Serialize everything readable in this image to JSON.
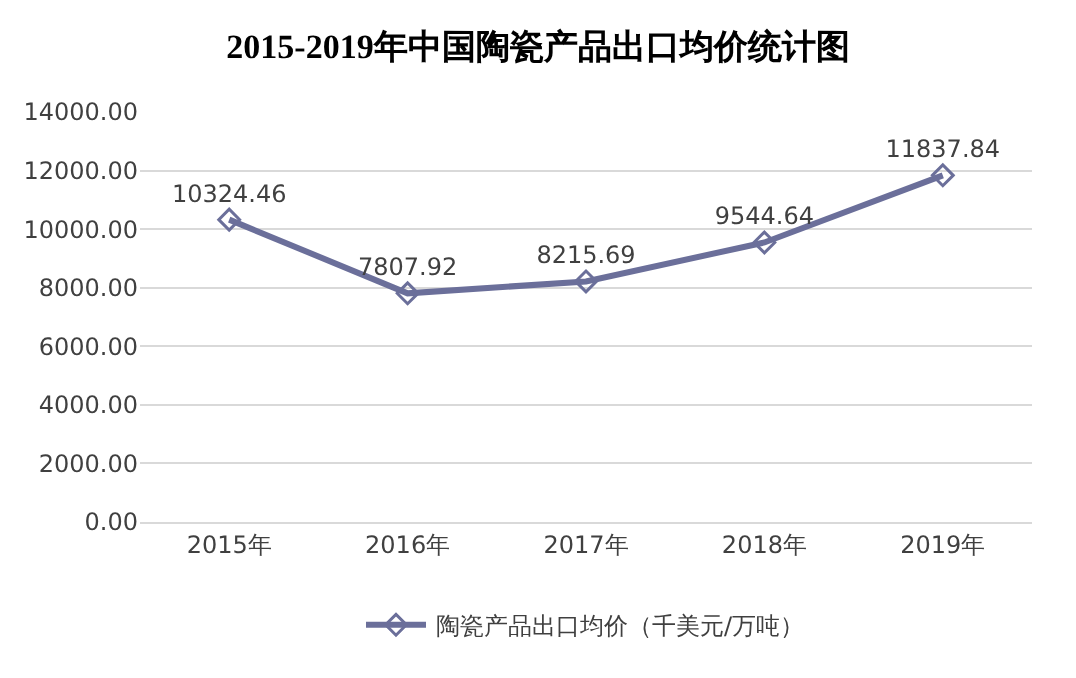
{
  "chart_data": {
    "type": "line",
    "title": "2015-2019年中国陶瓷产品出口均价统计图",
    "categories": [
      "2015年",
      "2016年",
      "2017年",
      "2018年",
      "2019年"
    ],
    "series": [
      {
        "name": "陶瓷产品出口均价（千美元/万吨）",
        "color": "#6b6f9a",
        "values": [
          10324.46,
          7807.92,
          8215.69,
          9544.64,
          11837.84
        ]
      }
    ],
    "ylim": [
      0,
      14000
    ],
    "yticks": [
      {
        "value": 0,
        "label": "0.00"
      },
      {
        "value": 2000,
        "label": "2000.00"
      },
      {
        "value": 4000,
        "label": "4000.00"
      },
      {
        "value": 6000,
        "label": "6000.00"
      },
      {
        "value": 8000,
        "label": "8000.00"
      },
      {
        "value": 10000,
        "label": "10000.00"
      },
      {
        "value": 12000,
        "label": "12000.00"
      },
      {
        "value": 14000,
        "label": "14000.00"
      }
    ],
    "grid": "y",
    "legend": "bottom",
    "marker": "diamond",
    "line_style": "solid",
    "data_labels": true
  }
}
